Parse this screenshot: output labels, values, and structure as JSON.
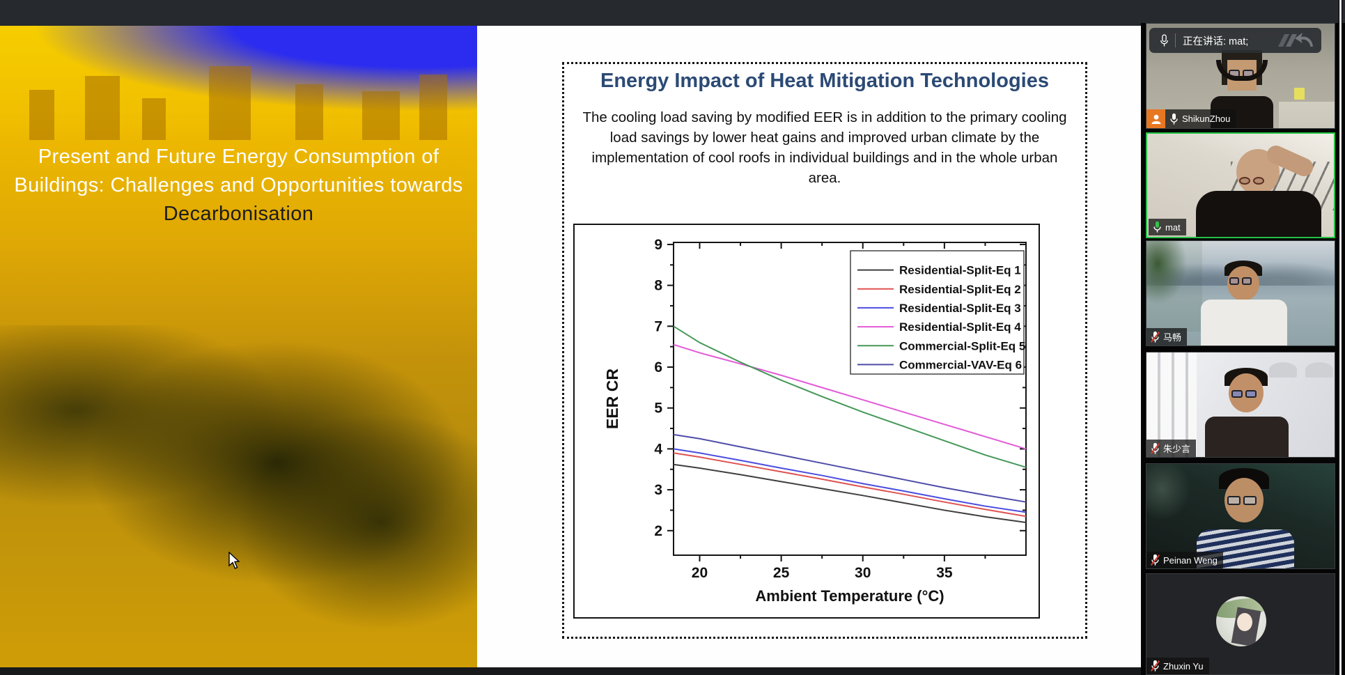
{
  "left_slide": {
    "title_main": "Present and Future Energy Consumption of Buildings: Challenges and Opportunities towards",
    "title_accent": "Decarbonisation"
  },
  "right_slide": {
    "heading": "Energy Impact of Heat Mitigation Technologies",
    "heading_color": "#2b4a75",
    "paragraph": "The cooling load saving by modified EER is in addition to the primary cooling load savings by lower heat gains and improved urban climate by the implementation of cool roofs in individual buildings and in the whole urban area."
  },
  "chart_data": {
    "type": "line",
    "title": "",
    "xlabel": "Ambient Temperature (°C)",
    "ylabel": "EER CR",
    "xlim": [
      18.4,
      40
    ],
    "ylim": [
      1.4,
      9.05
    ],
    "x_major_ticks": [
      20,
      25,
      30,
      35
    ],
    "x_minor_ticks": [
      22.5,
      27.5,
      32.5,
      37.5
    ],
    "y_major_ticks": [
      2,
      3,
      4,
      5,
      6,
      7,
      8,
      9
    ],
    "y_minor_ticks": [
      2.5,
      3.5,
      4.5,
      5.5,
      6.5,
      7.5,
      8.5
    ],
    "grid": false,
    "legend_position": "top-right",
    "x": [
      18.4,
      20,
      22.5,
      25,
      27.5,
      30,
      32.5,
      35,
      37.5,
      40
    ],
    "series": [
      {
        "name": "Residential-Split-Eq 1",
        "color": "#3f3f3f",
        "values": [
          3.62,
          3.53,
          3.37,
          3.2,
          3.03,
          2.86,
          2.68,
          2.5,
          2.34,
          2.2
        ]
      },
      {
        "name": "Residential-Split-Eq 2",
        "color": "#e05252",
        "values": [
          3.9,
          3.8,
          3.62,
          3.44,
          3.26,
          3.07,
          2.89,
          2.7,
          2.52,
          2.35
        ]
      },
      {
        "name": "Residential-Split-Eq 3",
        "color": "#4c4ce0",
        "values": [
          4.0,
          3.9,
          3.72,
          3.53,
          3.35,
          3.15,
          2.97,
          2.78,
          2.6,
          2.45
        ]
      },
      {
        "name": "Residential-Split-Eq 4",
        "color": "#e25ad8",
        "values": [
          6.55,
          6.35,
          6.08,
          5.8,
          5.5,
          5.2,
          4.9,
          4.6,
          4.3,
          4.0
        ]
      },
      {
        "name": "Commercial-Split-Eq 5",
        "color": "#459858",
        "values": [
          7.0,
          6.6,
          6.12,
          5.68,
          5.28,
          4.9,
          4.55,
          4.2,
          3.85,
          3.55
        ]
      },
      {
        "name": "Commercial-VAV-Eq 6",
        "color": "#4e4ca8",
        "values": [
          4.35,
          4.25,
          4.05,
          3.85,
          3.65,
          3.45,
          3.25,
          3.05,
          2.87,
          2.7
        ]
      }
    ]
  },
  "sidebar": {
    "speaking_banner": {
      "text": "正在讲话: mat;"
    },
    "participants": [
      {
        "name": "ShikunZhou",
        "mic": "on",
        "speaking": false,
        "camera_on": true,
        "badge": "person"
      },
      {
        "name": "mat",
        "mic": "active",
        "speaking": true,
        "camera_on": true
      },
      {
        "name": "马畅",
        "mic": "muted",
        "speaking": false,
        "camera_on": true
      },
      {
        "name": "朱少言",
        "mic": "muted",
        "speaking": false,
        "camera_on": true
      },
      {
        "name": "Peinan Weng",
        "mic": "muted",
        "speaking": false,
        "camera_on": true
      },
      {
        "name": "Zhuxin Yu",
        "mic": "muted",
        "speaking": false,
        "camera_on": false
      }
    ]
  }
}
